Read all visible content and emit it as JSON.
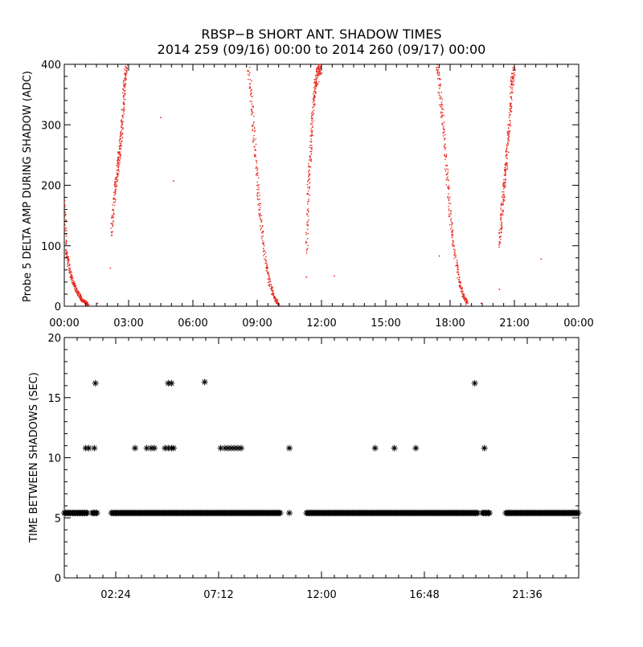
{
  "title": {
    "line1": "RBSP−B SHORT ANT. SHADOW TIMES",
    "line2": "2014 259 (09/16) 00:00 to 2014 260 (09/17) 00:00"
  },
  "colors": {
    "top_points": "#e8281e",
    "bottom_points": "#000000",
    "frame": "#000000"
  },
  "chart_data": [
    {
      "type": "scatter",
      "ylabel": "Probe 5 DELTA AMP DURING SHADOW (ADC)",
      "xlabel": "",
      "xlim_hours": [
        0,
        24
      ],
      "ylim": [
        0,
        400
      ],
      "x_ticks": [
        {
          "hours": 0,
          "label": "00:00"
        },
        {
          "hours": 3,
          "label": "03:00"
        },
        {
          "hours": 6,
          "label": "06:00"
        },
        {
          "hours": 9,
          "label": "09:00"
        },
        {
          "hours": 12,
          "label": "12:00"
        },
        {
          "hours": 15,
          "label": "15:00"
        },
        {
          "hours": 18,
          "label": "18:00"
        },
        {
          "hours": 21,
          "label": "21:00"
        },
        {
          "hours": 24,
          "label": "00:00"
        }
      ],
      "y_ticks": [
        {
          "value": 0,
          "label": "0"
        },
        {
          "value": 100,
          "label": "100"
        },
        {
          "value": 200,
          "label": "200"
        },
        {
          "value": 300,
          "label": "300"
        },
        {
          "value": 400,
          "label": "400"
        }
      ],
      "series_segments": [
        {
          "description": "descending",
          "x": [
            0.0,
            0.1,
            0.25,
            0.4,
            0.55,
            0.7,
            0.85,
            1.0,
            1.1
          ],
          "y": [
            170,
            90,
            60,
            40,
            28,
            18,
            10,
            6,
            3
          ]
        },
        {
          "description": "ascending",
          "x": [
            2.2,
            2.35,
            2.5,
            2.6,
            2.7,
            2.8,
            2.9
          ],
          "y": [
            120,
            190,
            230,
            260,
            300,
            360,
            400
          ]
        },
        {
          "description": "descending",
          "x": [
            8.6,
            8.75,
            8.9,
            9.05,
            9.2,
            9.4,
            9.6,
            9.8,
            10.0
          ],
          "y": [
            400,
            330,
            260,
            190,
            130,
            70,
            35,
            15,
            3
          ]
        },
        {
          "description": "ascending",
          "x": [
            11.3,
            11.4,
            11.5,
            11.6,
            11.7,
            11.8,
            11.9,
            12.0
          ],
          "y": [
            90,
            200,
            260,
            320,
            360,
            380,
            395,
            400
          ]
        },
        {
          "description": "descending",
          "x": [
            17.4,
            17.55,
            17.7,
            17.85,
            18.0,
            18.2,
            18.4,
            18.6,
            18.8
          ],
          "y": [
            400,
            350,
            290,
            220,
            150,
            90,
            45,
            18,
            4
          ]
        },
        {
          "description": "ascending",
          "x": [
            20.3,
            20.4,
            20.5,
            20.6,
            20.7,
            20.8,
            20.9,
            21.0
          ],
          "y": [
            100,
            150,
            190,
            230,
            270,
            320,
            370,
            400
          ]
        }
      ],
      "isolated_points": [
        {
          "x": 1.55,
          "y": 5
        },
        {
          "x": 4.5,
          "y": 312
        },
        {
          "x": 5.1,
          "y": 207
        },
        {
          "x": 2.15,
          "y": 63
        },
        {
          "x": 11.3,
          "y": 48
        },
        {
          "x": 12.6,
          "y": 50
        },
        {
          "x": 17.5,
          "y": 83
        },
        {
          "x": 19.45,
          "y": 5
        },
        {
          "x": 20.3,
          "y": 28
        },
        {
          "x": 22.25,
          "y": 78
        }
      ]
    },
    {
      "type": "scatter",
      "ylabel": "TIME BETWEEN SHADOWS (SEC)",
      "xlabel": "",
      "xlim_hours": [
        0,
        24
      ],
      "ylim": [
        0,
        20
      ],
      "x_ticks": [
        {
          "hours": 2.4,
          "label": "02:24"
        },
        {
          "hours": 7.2,
          "label": "07:12"
        },
        {
          "hours": 12.0,
          "label": "12:00"
        },
        {
          "hours": 16.8,
          "label": "16:48"
        },
        {
          "hours": 21.6,
          "label": "21:36"
        }
      ],
      "y_ticks": [
        {
          "value": 0,
          "label": "0"
        },
        {
          "value": 5,
          "label": "5"
        },
        {
          "value": 10,
          "label": "10"
        },
        {
          "value": 15,
          "label": "15"
        },
        {
          "value": 20,
          "label": "20"
        }
      ],
      "band_value": 5.4,
      "band_ranges_hours": [
        [
          0.0,
          1.1
        ],
        [
          1.3,
          1.55
        ],
        [
          2.2,
          10.1
        ],
        [
          11.3,
          19.3
        ],
        [
          19.5,
          19.85
        ],
        [
          20.6,
          24.0
        ]
      ],
      "gap_points_at_5_4": [
        10.5
      ],
      "points": [
        {
          "x": 1.0,
          "y": 10.8
        },
        {
          "x": 1.15,
          "y": 10.8
        },
        {
          "x": 1.4,
          "y": 10.8
        },
        {
          "x": 3.3,
          "y": 10.8
        },
        {
          "x": 3.85,
          "y": 10.8
        },
        {
          "x": 4.05,
          "y": 10.8
        },
        {
          "x": 4.2,
          "y": 10.8
        },
        {
          "x": 4.7,
          "y": 10.8
        },
        {
          "x": 4.85,
          "y": 10.8
        },
        {
          "x": 5.0,
          "y": 10.8
        },
        {
          "x": 5.1,
          "y": 10.8
        },
        {
          "x": 7.3,
          "y": 10.8
        },
        {
          "x": 7.5,
          "y": 10.8
        },
        {
          "x": 7.65,
          "y": 10.8
        },
        {
          "x": 7.8,
          "y": 10.8
        },
        {
          "x": 7.95,
          "y": 10.8
        },
        {
          "x": 8.1,
          "y": 10.8
        },
        {
          "x": 8.25,
          "y": 10.8
        },
        {
          "x": 10.5,
          "y": 10.8
        },
        {
          "x": 14.5,
          "y": 10.8
        },
        {
          "x": 15.4,
          "y": 10.8
        },
        {
          "x": 16.4,
          "y": 10.8
        },
        {
          "x": 19.6,
          "y": 10.8
        },
        {
          "x": 1.45,
          "y": 16.2
        },
        {
          "x": 4.85,
          "y": 16.2
        },
        {
          "x": 5.0,
          "y": 16.2
        },
        {
          "x": 6.55,
          "y": 16.3
        },
        {
          "x": 19.15,
          "y": 16.2
        }
      ]
    }
  ]
}
